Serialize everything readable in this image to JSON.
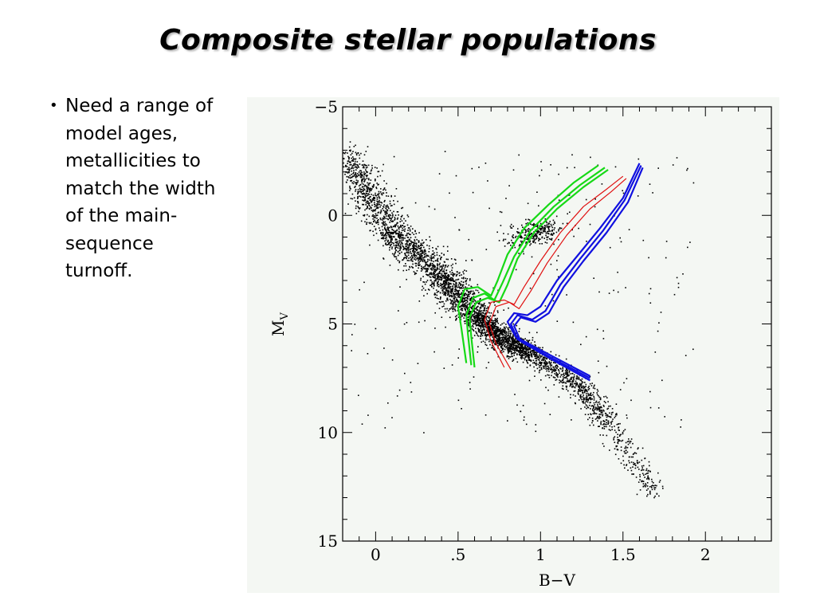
{
  "slide": {
    "title": "Composite stellar populations",
    "bullet_lines": [
      "Need a range of",
      "model ages,",
      "metallicities to",
      "match the width",
      "of the main-",
      "sequence",
      "turnoff."
    ]
  },
  "colors": {
    "background": "#ffffff",
    "plot_background": "#f4f7f3",
    "stars": "#000000",
    "isochrone_green": "#16d916",
    "isochrone_red": "#e01010",
    "isochrone_blue": "#1010e0"
  },
  "chart_data": {
    "type": "scatter",
    "title": "",
    "xlabel": "B−V",
    "ylabel_main": "M",
    "ylabel_sub": "V",
    "xlim": [
      -0.2,
      2.4
    ],
    "ylim": [
      -5,
      15
    ],
    "y_inverted": true,
    "x_ticks": [
      0,
      0.5,
      1,
      1.5,
      2
    ],
    "x_tick_labels": [
      "0",
      ".5",
      "1",
      "1.5",
      "2"
    ],
    "y_ticks": [
      -5,
      0,
      5,
      10,
      15
    ],
    "y_tick_labels": [
      "−5",
      "0",
      "5",
      "10",
      "15"
    ],
    "grid": false,
    "legend": "none",
    "series": [
      {
        "kind": "points",
        "color": "#000000",
        "description": "Observed stars (colour-magnitude diagram)",
        "sequences": [
          {
            "x": [
              -0.18,
              0.1,
              0.4,
              0.6,
              0.75,
              0.95,
              1.2,
              1.4,
              1.55,
              1.7
            ],
            "y": [
              -2.8,
              0.8,
              2.8,
              4.6,
              5.6,
              6.4,
              7.6,
              9.4,
              11.2,
              12.8
            ]
          },
          {
            "x": [
              0.85,
              0.92,
              1.0,
              1.05
            ],
            "y": [
              1.2,
              0.9,
              0.6,
              0.7
            ]
          }
        ]
      },
      {
        "kind": "isochrones",
        "color": "#16d916",
        "curves": [
          {
            "x": [
              0.55,
              0.52,
              0.5,
              0.54,
              0.62,
              0.7,
              0.74,
              0.8,
              0.9,
              1.05,
              1.2,
              1.35
            ],
            "y": [
              6.8,
              5.2,
              4.2,
              3.4,
              3.3,
              3.7,
              3.0,
              1.8,
              0.6,
              -0.5,
              -1.5,
              -2.3
            ]
          },
          {
            "x": [
              0.58,
              0.56,
              0.55,
              0.59,
              0.66,
              0.72,
              0.77,
              0.84,
              0.94,
              1.08,
              1.24,
              1.39
            ],
            "y": [
              6.9,
              5.5,
              4.6,
              3.8,
              3.6,
              3.9,
              3.1,
              1.9,
              0.7,
              -0.4,
              -1.4,
              -2.2
            ]
          },
          {
            "x": [
              0.6,
              0.58,
              0.57,
              0.61,
              0.68,
              0.75,
              0.8,
              0.86,
              0.96,
              1.1,
              1.26,
              1.41
            ],
            "y": [
              7.0,
              5.6,
              4.7,
              4.0,
              3.8,
              4.0,
              3.2,
              2.0,
              0.8,
              -0.3,
              -1.3,
              -2.1
            ]
          }
        ]
      },
      {
        "kind": "isochrones",
        "color": "#e01010",
        "curves": [
          {
            "x": [
              0.78,
              0.7,
              0.66,
              0.7,
              0.78,
              0.84,
              0.9,
              1.0,
              1.12,
              1.26,
              1.4,
              1.5
            ],
            "y": [
              7.0,
              5.8,
              4.8,
              4.0,
              3.9,
              4.1,
              3.3,
              2.1,
              0.8,
              -0.4,
              -1.2,
              -1.8
            ]
          },
          {
            "x": [
              0.82,
              0.73,
              0.69,
              0.73,
              0.81,
              0.87,
              0.94,
              1.04,
              1.16,
              1.3,
              1.43,
              1.52
            ],
            "y": [
              7.1,
              5.9,
              5.0,
              4.2,
              4.0,
              4.3,
              3.5,
              2.2,
              0.9,
              -0.3,
              -1.1,
              -1.7
            ]
          }
        ]
      },
      {
        "kind": "isochrones",
        "color": "#1010e0",
        "curves": [
          {
            "x": [
              1.3,
              1.05,
              0.85,
              0.8,
              0.84,
              0.92,
              1.0,
              1.1,
              1.22,
              1.36,
              1.5,
              1.6
            ],
            "y": [
              7.4,
              6.4,
              5.6,
              4.9,
              4.5,
              4.6,
              4.2,
              3.0,
              1.9,
              0.6,
              -0.8,
              -2.4
            ]
          },
          {
            "x": [
              1.3,
              1.05,
              0.86,
              0.82,
              0.86,
              0.95,
              1.03,
              1.12,
              1.24,
              1.38,
              1.51,
              1.61
            ],
            "y": [
              7.5,
              6.5,
              5.7,
              5.0,
              4.6,
              4.8,
              4.4,
              3.2,
              2.0,
              0.7,
              -0.7,
              -2.3
            ]
          },
          {
            "x": [
              1.3,
              1.06,
              0.88,
              0.84,
              0.88,
              0.97,
              1.05,
              1.14,
              1.26,
              1.4,
              1.53,
              1.62
            ],
            "y": [
              7.6,
              6.6,
              5.8,
              5.1,
              4.7,
              4.9,
              4.5,
              3.3,
              2.1,
              0.8,
              -0.6,
              -2.2
            ]
          }
        ]
      }
    ]
  }
}
